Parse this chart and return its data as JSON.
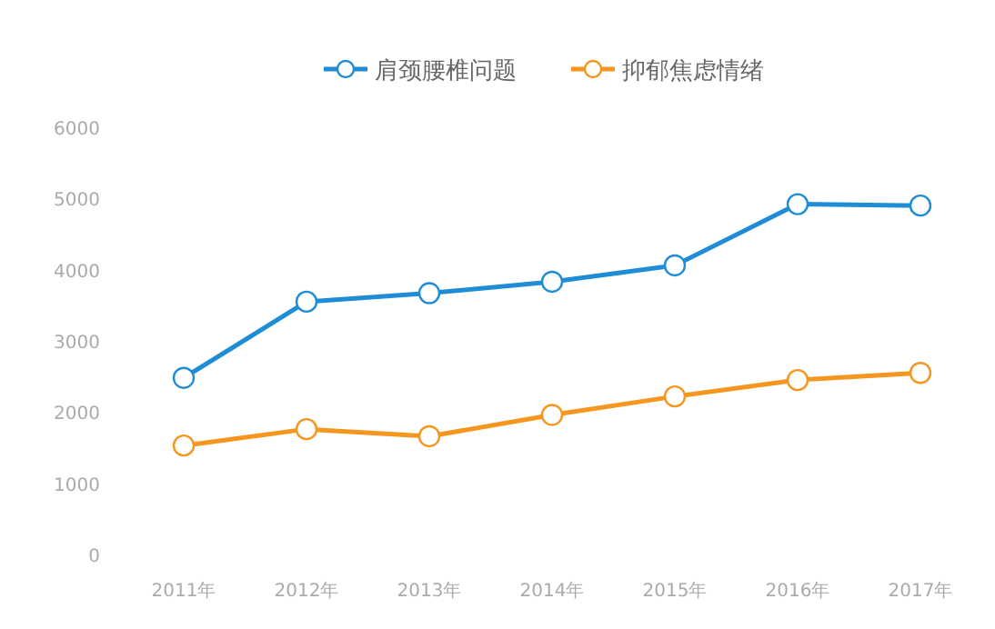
{
  "chart_data": {
    "type": "line",
    "categories": [
      "2011年",
      "2012年",
      "2013年",
      "2014年",
      "2015年",
      "2016年",
      "2017年"
    ],
    "series": [
      {
        "name": "肩颈腰椎问题",
        "color": "#1f8dd6",
        "values": [
          2480,
          3550,
          3670,
          3830,
          4060,
          4920,
          4900
        ]
      },
      {
        "name": "抑郁焦虑情绪",
        "color": "#f5961f",
        "values": [
          1530,
          1760,
          1660,
          1960,
          2220,
          2450,
          2550
        ]
      }
    ],
    "ylim": [
      0,
      6000
    ],
    "yticks": [
      0,
      1000,
      2000,
      3000,
      4000,
      5000,
      6000
    ],
    "legend": "top",
    "marker": "circle",
    "line_style": "solid"
  }
}
